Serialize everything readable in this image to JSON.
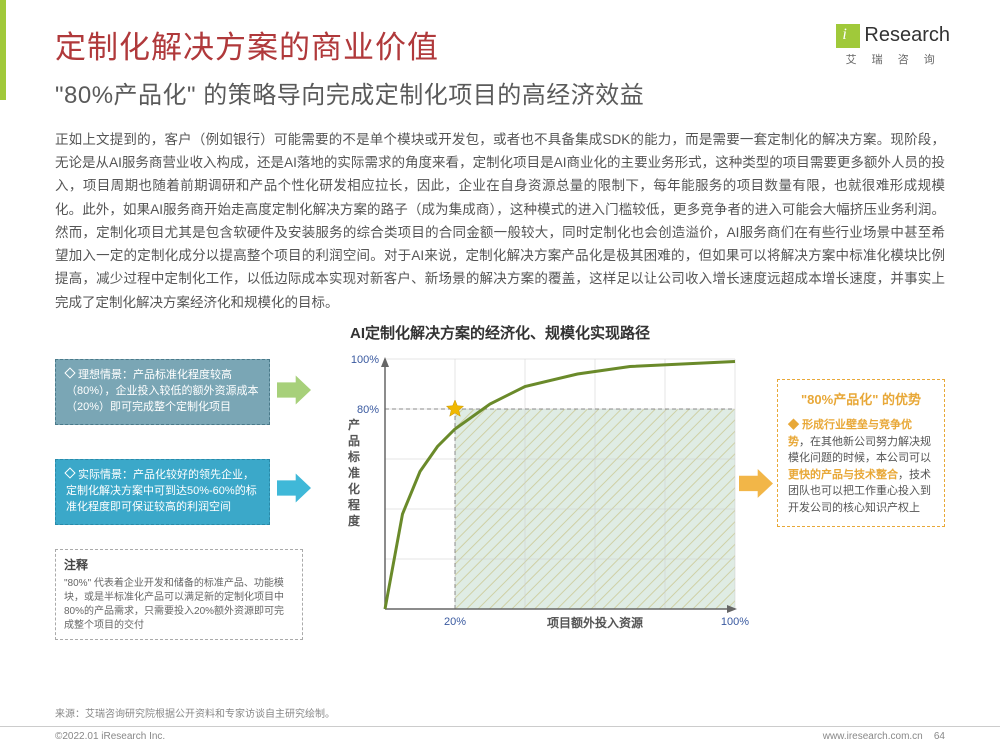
{
  "brand": {
    "name": "Research",
    "subtitle": "艾 瑞 咨 询"
  },
  "title": "定制化解决方案的商业价值",
  "subtitle": "\"80%产品化\"  的策略导向完成定制化项目的高经济效益",
  "body": "正如上文提到的，客户（例如银行）可能需要的不是单个模块或开发包，或者也不具备集成SDK的能力，而是需要一套定制化的解决方案。现阶段，无论是从AI服务商营业收入构成，还是AI落地的实际需求的角度来看，定制化项目是AI商业化的主要业务形式，这种类型的项目需要更多额外人员的投入，项目周期也随着前期调研和产品个性化研发相应拉长，因此，企业在自身资源总量的限制下，每年能服务的项目数量有限，也就很难形成规模化。此外，如果AI服务商开始走高度定制化解决方案的路子（成为集成商），这种模式的进入门槛较低，更多竞争者的进入可能会大幅挤压业务利润。然而，定制化项目尤其是包含软硬件及安装服务的综合类项目的合同金额一般较大，同时定制化也会创造溢价，AI服务商们在有些行业场景中甚至希望加入一定的定制化成分以提高整个项目的利润空间。对于AI来说，定制化解决方案产品化是极其困难的，但如果可以将解决方案中标准化模块比例提高，减少过程中定制化工作，以低边际成本实现对新客户、新场景的解决方案的覆盖，这样足以让公司收入增长速度远超成本增长速度，并事实上完成了定制化解决方案经济化和规模化的目标。",
  "chart": {
    "title": "AI定制化解决方案的经济化、规模化实现路径",
    "type": "curve",
    "y_label": "产品标准化程度",
    "x_label": "项目额外投入资源",
    "x_ticks": [
      "20%",
      "100%"
    ],
    "y_ticks": [
      "80%",
      "100%"
    ],
    "curve": [
      [
        0,
        0
      ],
      [
        5,
        38
      ],
      [
        10,
        55
      ],
      [
        15,
        65
      ],
      [
        20,
        72
      ],
      [
        30,
        82
      ],
      [
        40,
        89
      ],
      [
        55,
        94
      ],
      [
        70,
        97
      ],
      [
        100,
        99
      ]
    ],
    "threshold_y": 80,
    "threshold_x": 20,
    "curve_color": "#6a8a2a",
    "curve_width": 3,
    "star_color": "#f0b800",
    "grid_color": "#cccccc",
    "shade_blue": "#bfe5ee",
    "shade_blue_opacity": 0.85,
    "shade_hatch_color": "#d4b85a",
    "axis_color": "#666666",
    "tick_font_color": "#3a5aa0",
    "label_font_color": "#555555",
    "axis_label_fontsize": 12,
    "tick_fontsize": 11
  },
  "left_boxes": {
    "box1": {
      "label": "理想情景：产品标准化程度较高（80%），企业投入较低的额外资源成本（20%）即可完成整个定制化项目"
    },
    "box2": {
      "label": "实际情景：产品化较好的领先企业，定制化解决方案中可到达50%-60%的标准化程度即可保证较高的利润空间"
    }
  },
  "arrows": {
    "green_fill": "#a7d07a",
    "blue_fill": "#3fb8d8",
    "yellow_fill": "#f2b648"
  },
  "annotation": {
    "title": "注释",
    "body": "\"80%\" 代表着企业开发和储备的标准产品、功能模块，或是半标准化产品可以满足新的定制化项目中80%的产品需求，只需要投入20%额外资源即可完成整个项目的交付"
  },
  "right_box": {
    "title": "\"80%产品化\"  的优势",
    "lead": "形成行业壁垒与竞争优势",
    "body1": "，在其他新公司努力解决规模化问题的时候，本公司可以",
    "hl2": "更快的产品与技术整合",
    "body2": "，技术团队也可以把工作重心投入到开发公司的核心知识产权上"
  },
  "source": "来源：艾瑞咨询研究院根据公开资料和专家访谈自主研究绘制。",
  "footer": {
    "left": "©2022.01 iResearch Inc.",
    "right_url": "www.iresearch.com.cn",
    "page": "64"
  }
}
